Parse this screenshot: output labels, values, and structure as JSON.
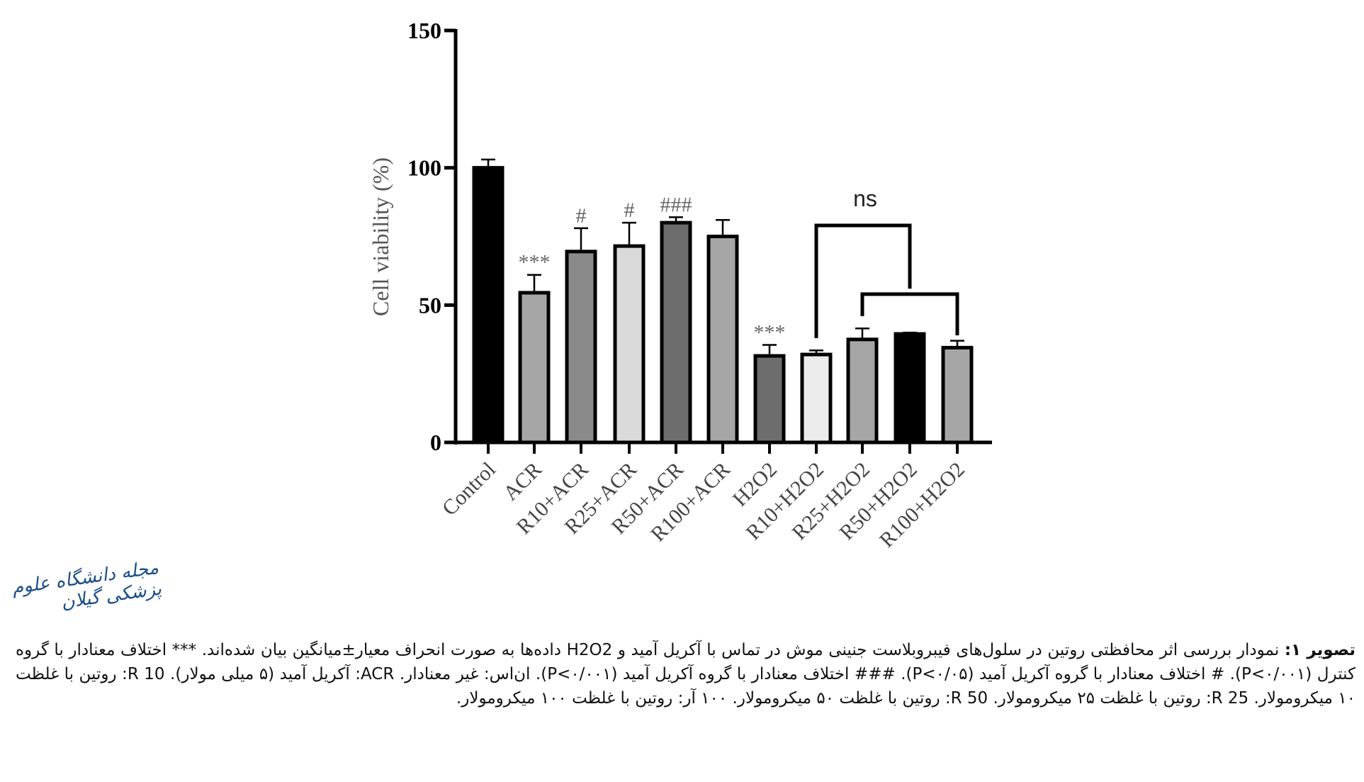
{
  "chart_data": {
    "type": "bar",
    "ylabel": "Cell viability (%)",
    "ylim": [
      0,
      150
    ],
    "yticks": [
      0,
      50,
      100,
      150
    ],
    "grid": false,
    "categories": [
      "Control",
      "ACR",
      "R10+ACR",
      "R25+ACR",
      "R50+ACR",
      "R100+ACR",
      "H2O2",
      "R10+H2O2",
      "R25+H2O2",
      "R50+H2O2",
      "R100+H2O2"
    ],
    "values": [
      100,
      54.5,
      69.5,
      71.5,
      80,
      75,
      31.5,
      32,
      37.5,
      39.5,
      34.5
    ],
    "error_upper": [
      103,
      61,
      78,
      80,
      82,
      81,
      35.5,
      33.5,
      41.5,
      40,
      37
    ],
    "colors": [
      "#000000",
      "#a6a6a6",
      "#8a8a8a",
      "#dadada",
      "#6d6d6d",
      "#a6a6a6",
      "#6d6d6d",
      "#ececec",
      "#a6a6a6",
      "#000000",
      "#a6a6a6"
    ],
    "annotations": [
      "",
      "***",
      "#",
      "#",
      "###",
      "",
      "***",
      "",
      "",
      "",
      ""
    ],
    "brackets": [
      {
        "from": "R10+H2O2",
        "to": "R50+H2O2",
        "label": "ns"
      },
      {
        "from": "R25+H2O2",
        "to": "R100+H2O2",
        "label": ""
      }
    ]
  },
  "logo_text": "مجله دانشگاه علوم پزشکی گیلان",
  "caption": {
    "label": "تصویر ۱:",
    "line1": " نمودار بررسی اثر محافظتی روتین در سلول‌های فیبروبلاست جنینی موش در تماس با آکریل آمید و H2O2 داده‌ها به صورت انحراف معیار±میانگین بیان شده‌اند. *** اختلاف معنادار با گروه کنترل (P<۰/۰۰۱). # اختلاف معنادار با گروه آکریل آمید (P<۰/۰۵). ### اختلاف معنادار با گروه آکریل آمید (P<۰/۰۰۱).",
    "line2": " ان‌اس: غیر معنادار. ACR: آکریل آمید (۵ میلی مولار). R 10: روتین با غلظت ۱۰ میکرومولار. R 25: روتین با غلظت ۲۵ میکرومولار. R 50: روتین با غلظت ۵۰ میکرومولار. ۱۰۰ آر: روتین با غلظت ۱۰۰ میکرومولار."
  }
}
